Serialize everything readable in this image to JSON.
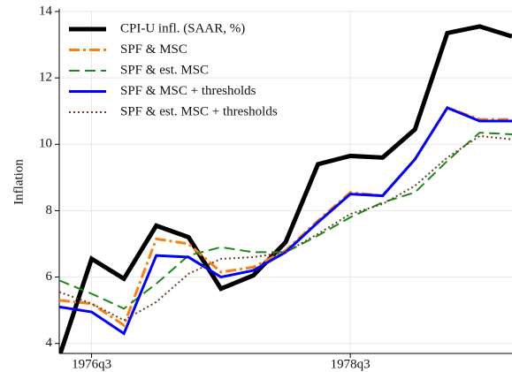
{
  "chart_data": {
    "type": "line",
    "y_label": "Inflation",
    "categories": [
      null,
      "1976q3",
      null,
      null,
      null,
      null,
      null,
      null,
      null,
      "1978q3",
      null,
      null,
      null,
      null,
      null
    ],
    "ylim": [
      3.7,
      14
    ],
    "yticks": [
      4,
      6,
      8,
      10,
      12,
      14
    ],
    "grid": true,
    "legend": "upper left",
    "series": [
      {
        "name": "CPI-U infl. (SAAR, %)",
        "color": "#000000",
        "linestyle": "solid",
        "linewidth": 5,
        "values": [
          3.6,
          6.55,
          5.95,
          7.55,
          7.2,
          5.65,
          6.05,
          7.05,
          9.4,
          9.65,
          9.6,
          10.45,
          13.35,
          13.55,
          13.25
        ]
      },
      {
        "name": "SPF & MSC",
        "color": "#ff7f0e",
        "linestyle": "dashdot",
        "linewidth": 3,
        "values": [
          5.3,
          5.2,
          4.55,
          7.15,
          7.0,
          6.15,
          6.3,
          6.8,
          7.7,
          8.55,
          8.45,
          9.55,
          11.1,
          10.75,
          10.75
        ]
      },
      {
        "name": "SPF & est. MSC",
        "color": "#1a8a1a",
        "linestyle": "dashed",
        "linewidth": 2,
        "values": [
          5.9,
          5.5,
          5.05,
          5.8,
          6.65,
          6.9,
          6.75,
          6.75,
          7.25,
          7.8,
          8.25,
          8.55,
          9.5,
          10.35,
          10.3
        ]
      },
      {
        "name": "SPF & MSC + thresholds",
        "color": "#0000ff",
        "linestyle": "solid",
        "linewidth": 3,
        "values": [
          5.1,
          4.95,
          4.3,
          6.65,
          6.6,
          6.0,
          6.2,
          6.75,
          7.65,
          8.5,
          8.45,
          9.55,
          11.1,
          10.7,
          10.7
        ]
      },
      {
        "name": "SPF & est. MSC + thresholds",
        "color": "#6b4226",
        "linestyle": "dotted",
        "linewidth": 2,
        "values": [
          5.55,
          5.2,
          4.7,
          5.25,
          6.1,
          6.55,
          6.6,
          6.75,
          7.3,
          7.9,
          8.2,
          8.75,
          9.6,
          10.25,
          10.15
        ]
      }
    ]
  }
}
